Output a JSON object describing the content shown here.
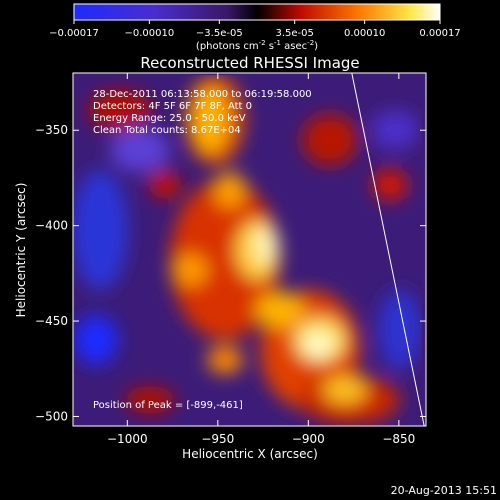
{
  "chart_data": {
    "type": "heatmap",
    "title": "Reconstructed RHESSI Image",
    "xlabel": "Heliocentric X (arcsec)",
    "ylabel": "Heliocentric Y (arcsec)",
    "xlim": [
      -1030,
      -835
    ],
    "ylim": [
      -505,
      -320
    ],
    "xticks": [
      -1000,
      -950,
      -900,
      -850
    ],
    "yticks": [
      -350,
      -400,
      -450,
      -500
    ],
    "annotations": [
      "28-Dec-2011 06:13:58.000 to 06:19:58.000",
      "Detectors: 4F 5F 6F 7F 8F, Att 0",
      "Energy Range: 25.0 - 50.0 keV",
      "Clean    Total counts: 8.67E+04"
    ],
    "peak_label": "Position of Peak = [-899,-461]",
    "peak": [
      -899,
      -461
    ],
    "colorbar": {
      "ticks": [
        "-0.00017",
        "-0.00010",
        "-3.5e-05",
        "3.5e-05",
        "0.00010",
        "0.00017"
      ],
      "tick_values": [
        -0.00017,
        -0.0001,
        -3.5e-05,
        3.5e-05,
        0.0001,
        0.00017
      ],
      "range": [
        -0.00017,
        0.00017
      ],
      "unit_label": "(photons cm",
      "unit_exp1": "-2",
      "unit_mid": " s",
      "unit_exp2": "-1",
      "unit_end": " asec",
      "unit_exp3": "-2",
      "unit_close": ")"
    },
    "limb_line": [
      [
        -876,
        -320
      ],
      [
        -836,
        -505
      ]
    ],
    "grid": false
  },
  "footer": {
    "timestamp": "20-Aug-2013 15:51"
  },
  "colors": {
    "background": "#000000",
    "text": "#ffffff"
  }
}
